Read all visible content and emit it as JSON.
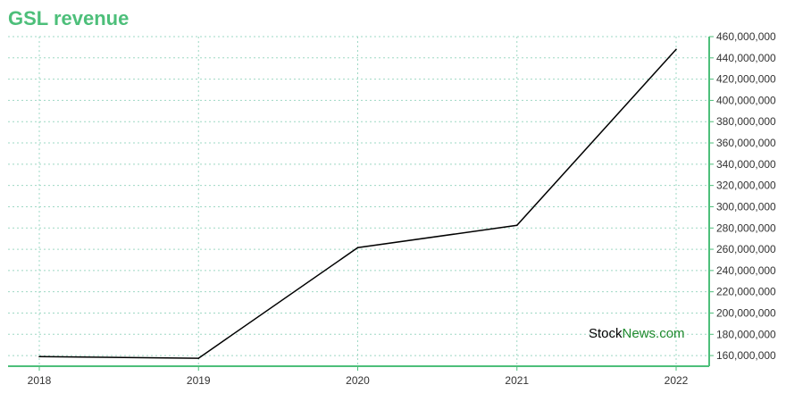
{
  "colors": {
    "accent": "#4dbf7a",
    "grid": "#9ed8c4",
    "line": "#000000",
    "watermark_green": "#1f8a2e"
  },
  "chart_data": {
    "type": "line",
    "title": "GSL revenue",
    "xlabel": "",
    "ylabel": "",
    "categories": [
      "2018",
      "2019",
      "2020",
      "2021",
      "2022"
    ],
    "series": [
      {
        "values": [
          159000000,
          157500000,
          261500000,
          282500000,
          448000000
        ]
      }
    ],
    "ylim": [
      150000000,
      460000000
    ],
    "y_ticks": [
      160000000,
      180000000,
      200000000,
      220000000,
      240000000,
      260000000,
      280000000,
      300000000,
      320000000,
      340000000,
      360000000,
      380000000,
      400000000,
      420000000,
      440000000,
      460000000
    ],
    "y_tick_labels": [
      "160,000,000",
      "180,000,000",
      "200,000,000",
      "220,000,000",
      "240,000,000",
      "260,000,000",
      "280,000,000",
      "300,000,000",
      "320,000,000",
      "340,000,000",
      "360,000,000",
      "380,000,000",
      "400,000,000",
      "420,000,000",
      "440,000,000",
      "460,000,000"
    ],
    "y_axis_side": "right",
    "grid": true,
    "legend": "none"
  },
  "watermark": {
    "part1": "Stock",
    "part2": "News.com"
  }
}
